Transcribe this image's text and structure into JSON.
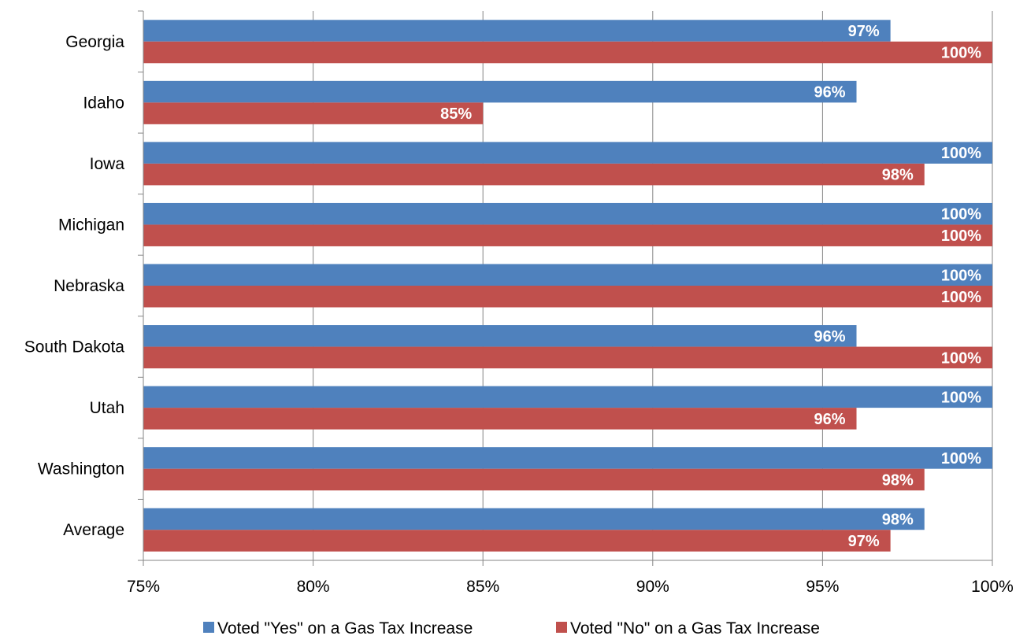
{
  "chart_data": {
    "type": "bar",
    "orientation": "horizontal",
    "categories": [
      "Georgia",
      "Idaho",
      "Iowa",
      "Michigan",
      "Nebraska",
      "South Dakota",
      "Utah",
      "Washington",
      "Average"
    ],
    "series": [
      {
        "name": "Voted \"Yes\" on a Gas Tax Increase",
        "color": "#4F81BD",
        "values": [
          97,
          96,
          100,
          100,
          100,
          96,
          100,
          100,
          98
        ],
        "labels": [
          "97%",
          "96%",
          "100%",
          "100%",
          "100%",
          "96%",
          "100%",
          "100%",
          "98%"
        ]
      },
      {
        "name": "Voted \"No\" on a Gas Tax Increase",
        "color": "#C0504D",
        "values": [
          100,
          85,
          98,
          100,
          100,
          100,
          96,
          98,
          97
        ],
        "labels": [
          "100%",
          "85%",
          "98%",
          "100%",
          "100%",
          "100%",
          "96%",
          "98%",
          "97%"
        ]
      }
    ],
    "xlim": [
      75,
      100
    ],
    "xticks": [
      75,
      80,
      85,
      90,
      95,
      100
    ],
    "xtick_labels": [
      "75%",
      "80%",
      "85%",
      "90%",
      "95%",
      "100%"
    ],
    "grid": true,
    "legend_position": "bottom",
    "title": "",
    "xlabel": "",
    "ylabel": ""
  }
}
